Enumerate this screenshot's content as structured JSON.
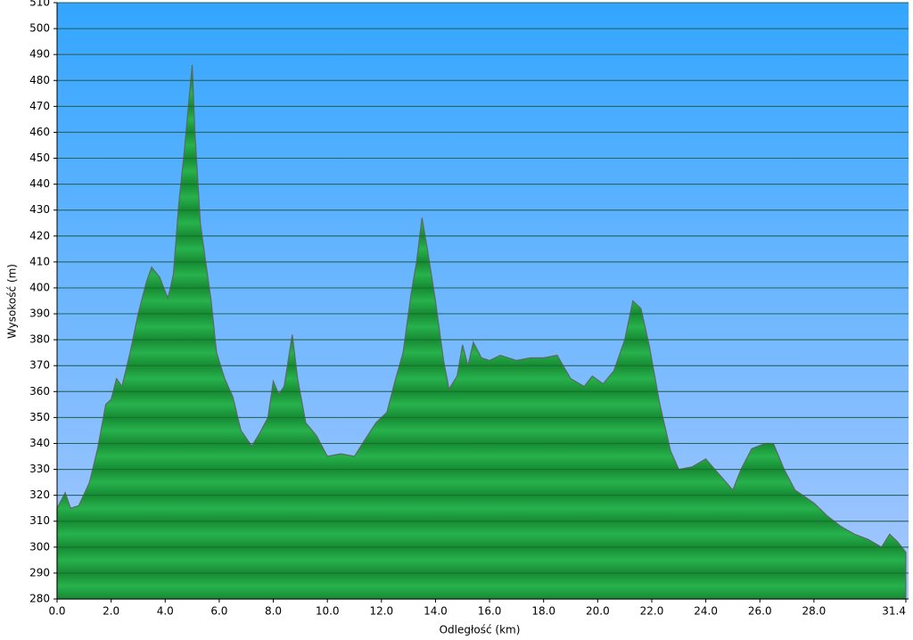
{
  "chart_data": {
    "type": "area",
    "xlabel": "Odległość  (km)",
    "ylabel": "Wysokość (m)",
    "x": [
      0.0,
      0.3,
      0.5,
      0.8,
      1.2,
      1.5,
      1.8,
      2.0,
      2.2,
      2.4,
      2.7,
      3.0,
      3.3,
      3.5,
      3.8,
      4.1,
      4.3,
      4.5,
      4.7,
      4.9,
      5.0,
      5.1,
      5.3,
      5.5,
      5.7,
      5.9,
      6.2,
      6.5,
      6.8,
      7.2,
      7.5,
      7.8,
      8.0,
      8.2,
      8.4,
      8.7,
      8.9,
      9.2,
      9.6,
      10.0,
      10.5,
      11.0,
      11.3,
      11.8,
      12.2,
      12.5,
      12.8,
      13.1,
      13.3,
      13.5,
      13.7,
      14.0,
      14.3,
      14.5,
      14.8,
      15.0,
      15.2,
      15.4,
      15.7,
      16.0,
      16.4,
      17.0,
      17.5,
      18.0,
      18.5,
      19.0,
      19.5,
      19.8,
      20.2,
      20.6,
      21.0,
      21.3,
      21.6,
      21.9,
      22.3,
      22.7,
      23.0,
      23.5,
      24.0,
      24.5,
      25.0,
      25.3,
      25.7,
      26.2,
      26.5,
      26.9,
      27.3,
      28.0,
      28.5,
      29.0,
      29.5,
      30.0,
      30.5,
      30.8,
      31.1,
      31.4
    ],
    "values": [
      315,
      321,
      315,
      316,
      325,
      338,
      355,
      357,
      365,
      362,
      375,
      390,
      402,
      408,
      404,
      396,
      405,
      432,
      452,
      475,
      486,
      460,
      425,
      410,
      395,
      375,
      365,
      358,
      345,
      339,
      344,
      350,
      364,
      359,
      362,
      382,
      365,
      348,
      343,
      335,
      336,
      335,
      340,
      348,
      352,
      364,
      375,
      398,
      410,
      427,
      415,
      395,
      372,
      361,
      366,
      378,
      370,
      379,
      373,
      372,
      374,
      372,
      373,
      373,
      374,
      365,
      362,
      366,
      363,
      368,
      380,
      395,
      392,
      378,
      355,
      337,
      330,
      331,
      334,
      328,
      322,
      330,
      338,
      340,
      340,
      330,
      322,
      317,
      312,
      308,
      305,
      303,
      300,
      305,
      302,
      298
    ],
    "color": "#1f9a3c",
    "xlim": [
      0,
      31.5
    ],
    "ylim": [
      280,
      510
    ],
    "xticks": [
      {
        "value": 0,
        "label": "0.0"
      },
      {
        "value": 2,
        "label": "2.0"
      },
      {
        "value": 4,
        "label": "4.0"
      },
      {
        "value": 6,
        "label": "6.0"
      },
      {
        "value": 8,
        "label": "8.0"
      },
      {
        "value": 10,
        "label": "10.0"
      },
      {
        "value": 12,
        "label": "12.0"
      },
      {
        "value": 14,
        "label": "14.0"
      },
      {
        "value": 16,
        "label": "16.0"
      },
      {
        "value": 18,
        "label": "18.0"
      },
      {
        "value": 20,
        "label": "20.0"
      },
      {
        "value": 22,
        "label": "22.0"
      },
      {
        "value": 24,
        "label": "24.0"
      },
      {
        "value": 26,
        "label": "26.0"
      },
      {
        "value": 28,
        "label": "28.0"
      },
      31.4
    ],
    "yticks": [
      280,
      290,
      300,
      310,
      320,
      330,
      340,
      350,
      360,
      370,
      380,
      390,
      400,
      410,
      420,
      430,
      440,
      450,
      460,
      470,
      480,
      490,
      500,
      510
    ],
    "grid": true
  }
}
